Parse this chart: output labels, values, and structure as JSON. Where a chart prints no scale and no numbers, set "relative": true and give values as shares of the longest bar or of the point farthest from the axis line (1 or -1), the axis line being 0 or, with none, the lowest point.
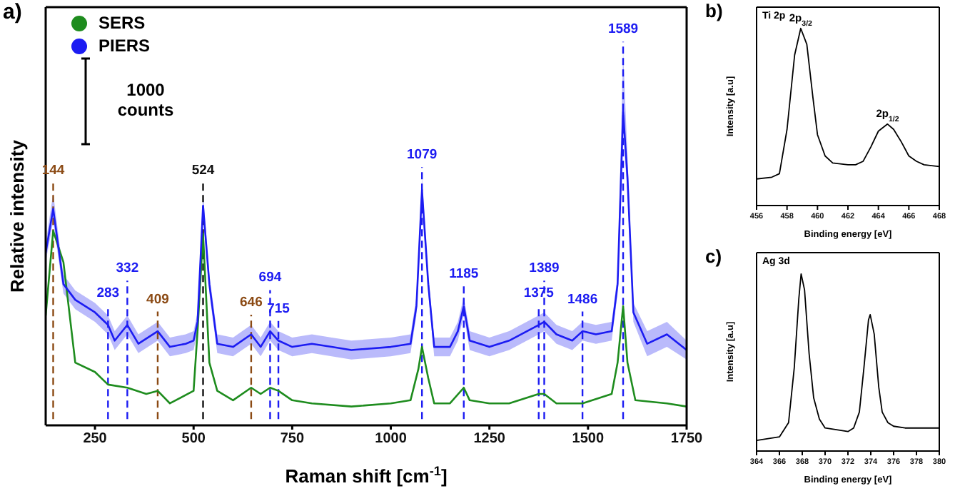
{
  "chart_data": [
    {
      "type": "line",
      "title": "a)",
      "xlabel": "Raman shift [cm$^{-1}$]",
      "ylabel": "Relative intensity",
      "relative": true,
      "xlim": [
        125,
        1750
      ],
      "xticks": [
        250,
        500,
        750,
        1000,
        1250,
        1500,
        1750
      ],
      "legend": "top left",
      "annotations": [
        "1000 counts"
      ],
      "series": [
        {
          "name": "SERS",
          "color": "#1e8c1e",
          "x": [
            125,
            144,
            170,
            200,
            250,
            283,
            332,
            380,
            409,
            440,
            500,
            510,
            524,
            540,
            560,
            600,
            646,
            670,
            694,
            715,
            750,
            800,
            900,
            1000,
            1050,
            1070,
            1079,
            1095,
            1110,
            1150,
            1185,
            1200,
            1250,
            1300,
            1375,
            1389,
            1420,
            1486,
            1560,
            1575,
            1589,
            1600,
            1620,
            1700,
            1750
          ],
          "values": [
            0.35,
            0.62,
            0.52,
            0.2,
            0.17,
            0.13,
            0.12,
            0.1,
            0.11,
            0.07,
            0.11,
            0.3,
            0.61,
            0.2,
            0.11,
            0.08,
            0.12,
            0.1,
            0.12,
            0.11,
            0.08,
            0.07,
            0.06,
            0.07,
            0.08,
            0.18,
            0.25,
            0.15,
            0.07,
            0.07,
            0.12,
            0.08,
            0.07,
            0.07,
            0.1,
            0.1,
            0.07,
            0.07,
            0.1,
            0.2,
            0.38,
            0.2,
            0.08,
            0.07,
            0.06
          ]
        },
        {
          "name": "PIERS",
          "color": "#1c1cf2",
          "x": [
            125,
            144,
            170,
            200,
            250,
            283,
            300,
            332,
            360,
            409,
            440,
            480,
            500,
            510,
            524,
            540,
            560,
            600,
            646,
            670,
            694,
            715,
            750,
            800,
            850,
            900,
            1000,
            1050,
            1065,
            1079,
            1095,
            1110,
            1150,
            1170,
            1185,
            1200,
            1250,
            1300,
            1375,
            1389,
            1420,
            1460,
            1486,
            1520,
            1560,
            1575,
            1589,
            1600,
            1615,
            1650,
            1700,
            1750
          ],
          "values": [
            0.55,
            0.69,
            0.45,
            0.4,
            0.36,
            0.32,
            0.27,
            0.32,
            0.26,
            0.3,
            0.25,
            0.26,
            0.27,
            0.33,
            0.7,
            0.45,
            0.26,
            0.25,
            0.29,
            0.25,
            0.3,
            0.27,
            0.25,
            0.26,
            0.25,
            0.24,
            0.25,
            0.26,
            0.38,
            0.75,
            0.45,
            0.25,
            0.25,
            0.3,
            0.38,
            0.27,
            0.25,
            0.27,
            0.32,
            0.33,
            0.29,
            0.27,
            0.3,
            0.29,
            0.3,
            0.45,
            1.0,
            0.79,
            0.36,
            0.26,
            0.29,
            0.24
          ],
          "lower": [
            0.52,
            0.65,
            0.42,
            0.37,
            0.33,
            0.29,
            0.24,
            0.29,
            0.23,
            0.27,
            0.22,
            0.23,
            0.24,
            0.3,
            0.67,
            0.42,
            0.23,
            0.22,
            0.26,
            0.22,
            0.27,
            0.24,
            0.22,
            0.23,
            0.22,
            0.21,
            0.22,
            0.23,
            0.35,
            0.71,
            0.42,
            0.22,
            0.22,
            0.27,
            0.35,
            0.24,
            0.22,
            0.24,
            0.29,
            0.3,
            0.26,
            0.24,
            0.27,
            0.26,
            0.27,
            0.42,
            0.93,
            0.74,
            0.33,
            0.22,
            0.25,
            0.21
          ],
          "upper": [
            0.58,
            0.74,
            0.48,
            0.43,
            0.39,
            0.35,
            0.3,
            0.35,
            0.29,
            0.33,
            0.28,
            0.29,
            0.3,
            0.36,
            0.74,
            0.48,
            0.29,
            0.28,
            0.32,
            0.28,
            0.33,
            0.3,
            0.28,
            0.29,
            0.28,
            0.27,
            0.28,
            0.29,
            0.41,
            0.79,
            0.48,
            0.28,
            0.28,
            0.33,
            0.41,
            0.3,
            0.28,
            0.3,
            0.35,
            0.36,
            0.32,
            0.3,
            0.33,
            0.32,
            0.33,
            0.48,
            1.19,
            0.86,
            0.39,
            0.3,
            0.33,
            0.27
          ]
        }
      ],
      "ref_lines": [
        {
          "axis": "x",
          "value": 144,
          "label": "144",
          "color": "#8b4a14",
          "line_style": "dashed"
        },
        {
          "axis": "x",
          "value": 283,
          "label": "283",
          "color": "#1c1cf2",
          "line_style": "dashed"
        },
        {
          "axis": "x",
          "value": 332,
          "label": "332",
          "color": "#1c1cf2",
          "line_style": "dashed"
        },
        {
          "axis": "x",
          "value": 409,
          "label": "409",
          "color": "#8b4a14",
          "line_style": "dashed"
        },
        {
          "axis": "x",
          "value": 524,
          "label": "524",
          "color": "#111111",
          "line_style": "dashed"
        },
        {
          "axis": "x",
          "value": 646,
          "label": "646",
          "color": "#8b4a14",
          "line_style": "dashed"
        },
        {
          "axis": "x",
          "value": 694,
          "label": "694",
          "color": "#1c1cf2",
          "line_style": "dashed"
        },
        {
          "axis": "x",
          "value": 715,
          "label": "715",
          "color": "#1c1cf2",
          "line_style": "dashed"
        },
        {
          "axis": "x",
          "value": 1079,
          "label": "1079",
          "color": "#1c1cf2",
          "line_style": "dashed"
        },
        {
          "axis": "x",
          "value": 1185,
          "label": "1185",
          "color": "#1c1cf2",
          "line_style": "dashed"
        },
        {
          "axis": "x",
          "value": 1375,
          "label": "1375",
          "color": "#1c1cf2",
          "line_style": "dashed"
        },
        {
          "axis": "x",
          "value": 1389,
          "label": "1389",
          "color": "#1c1cf2",
          "line_style": "dashed"
        },
        {
          "axis": "x",
          "value": 1486,
          "label": "1486",
          "color": "#1c1cf2",
          "line_style": "dashed"
        },
        {
          "axis": "x",
          "value": 1589,
          "label": "1589",
          "color": "#1c1cf2",
          "line_style": "dashed"
        }
      ]
    },
    {
      "type": "line",
      "title": "b)",
      "xlabel": "Binding energy [eV]",
      "ylabel": "Intensity [a.u]",
      "relative": true,
      "xlim": [
        456,
        468
      ],
      "xticks": [
        456,
        458,
        460,
        462,
        464,
        466,
        468
      ],
      "annotations": [
        "Ti 2p",
        {
          "text": "2p$_{3/2}$",
          "x": 458.9,
          "y": 1.0
        },
        {
          "text": "2p$_{1/2}$",
          "x": 464.6,
          "y": 0.46
        }
      ],
      "series": [
        {
          "color": "#000000",
          "x": [
            456,
            457,
            457.5,
            458,
            458.5,
            458.9,
            459.3,
            459.7,
            460,
            460.5,
            461,
            462,
            462.5,
            463,
            463.5,
            464,
            464.6,
            465,
            465.5,
            466,
            466.5,
            467,
            468
          ],
          "values": [
            0.15,
            0.16,
            0.18,
            0.43,
            0.85,
            1.0,
            0.91,
            0.61,
            0.4,
            0.28,
            0.24,
            0.23,
            0.23,
            0.25,
            0.33,
            0.42,
            0.46,
            0.43,
            0.36,
            0.28,
            0.25,
            0.23,
            0.22
          ]
        }
      ]
    },
    {
      "type": "line",
      "title": "c)",
      "xlabel": "Binding energy [eV]",
      "ylabel": "Intensity [a.u]",
      "relative": true,
      "xlim": [
        364,
        380
      ],
      "xticks": [
        364,
        366,
        368,
        370,
        372,
        374,
        376,
        378,
        380
      ],
      "annotations": [
        "Ag 3d"
      ],
      "series": [
        {
          "color": "#000000",
          "x": [
            364,
            366,
            366.8,
            367.3,
            367.7,
            367.9,
            368.2,
            368.6,
            369,
            369.5,
            370,
            371,
            372,
            372.5,
            373,
            373.4,
            373.8,
            373.95,
            374.3,
            374.7,
            375,
            375.5,
            376,
            377,
            378,
            380
          ],
          "values": [
            0.06,
            0.08,
            0.16,
            0.47,
            0.86,
            1.0,
            0.91,
            0.55,
            0.3,
            0.18,
            0.13,
            0.12,
            0.11,
            0.13,
            0.22,
            0.47,
            0.74,
            0.77,
            0.66,
            0.36,
            0.22,
            0.16,
            0.14,
            0.13,
            0.13,
            0.13
          ]
        }
      ]
    }
  ]
}
